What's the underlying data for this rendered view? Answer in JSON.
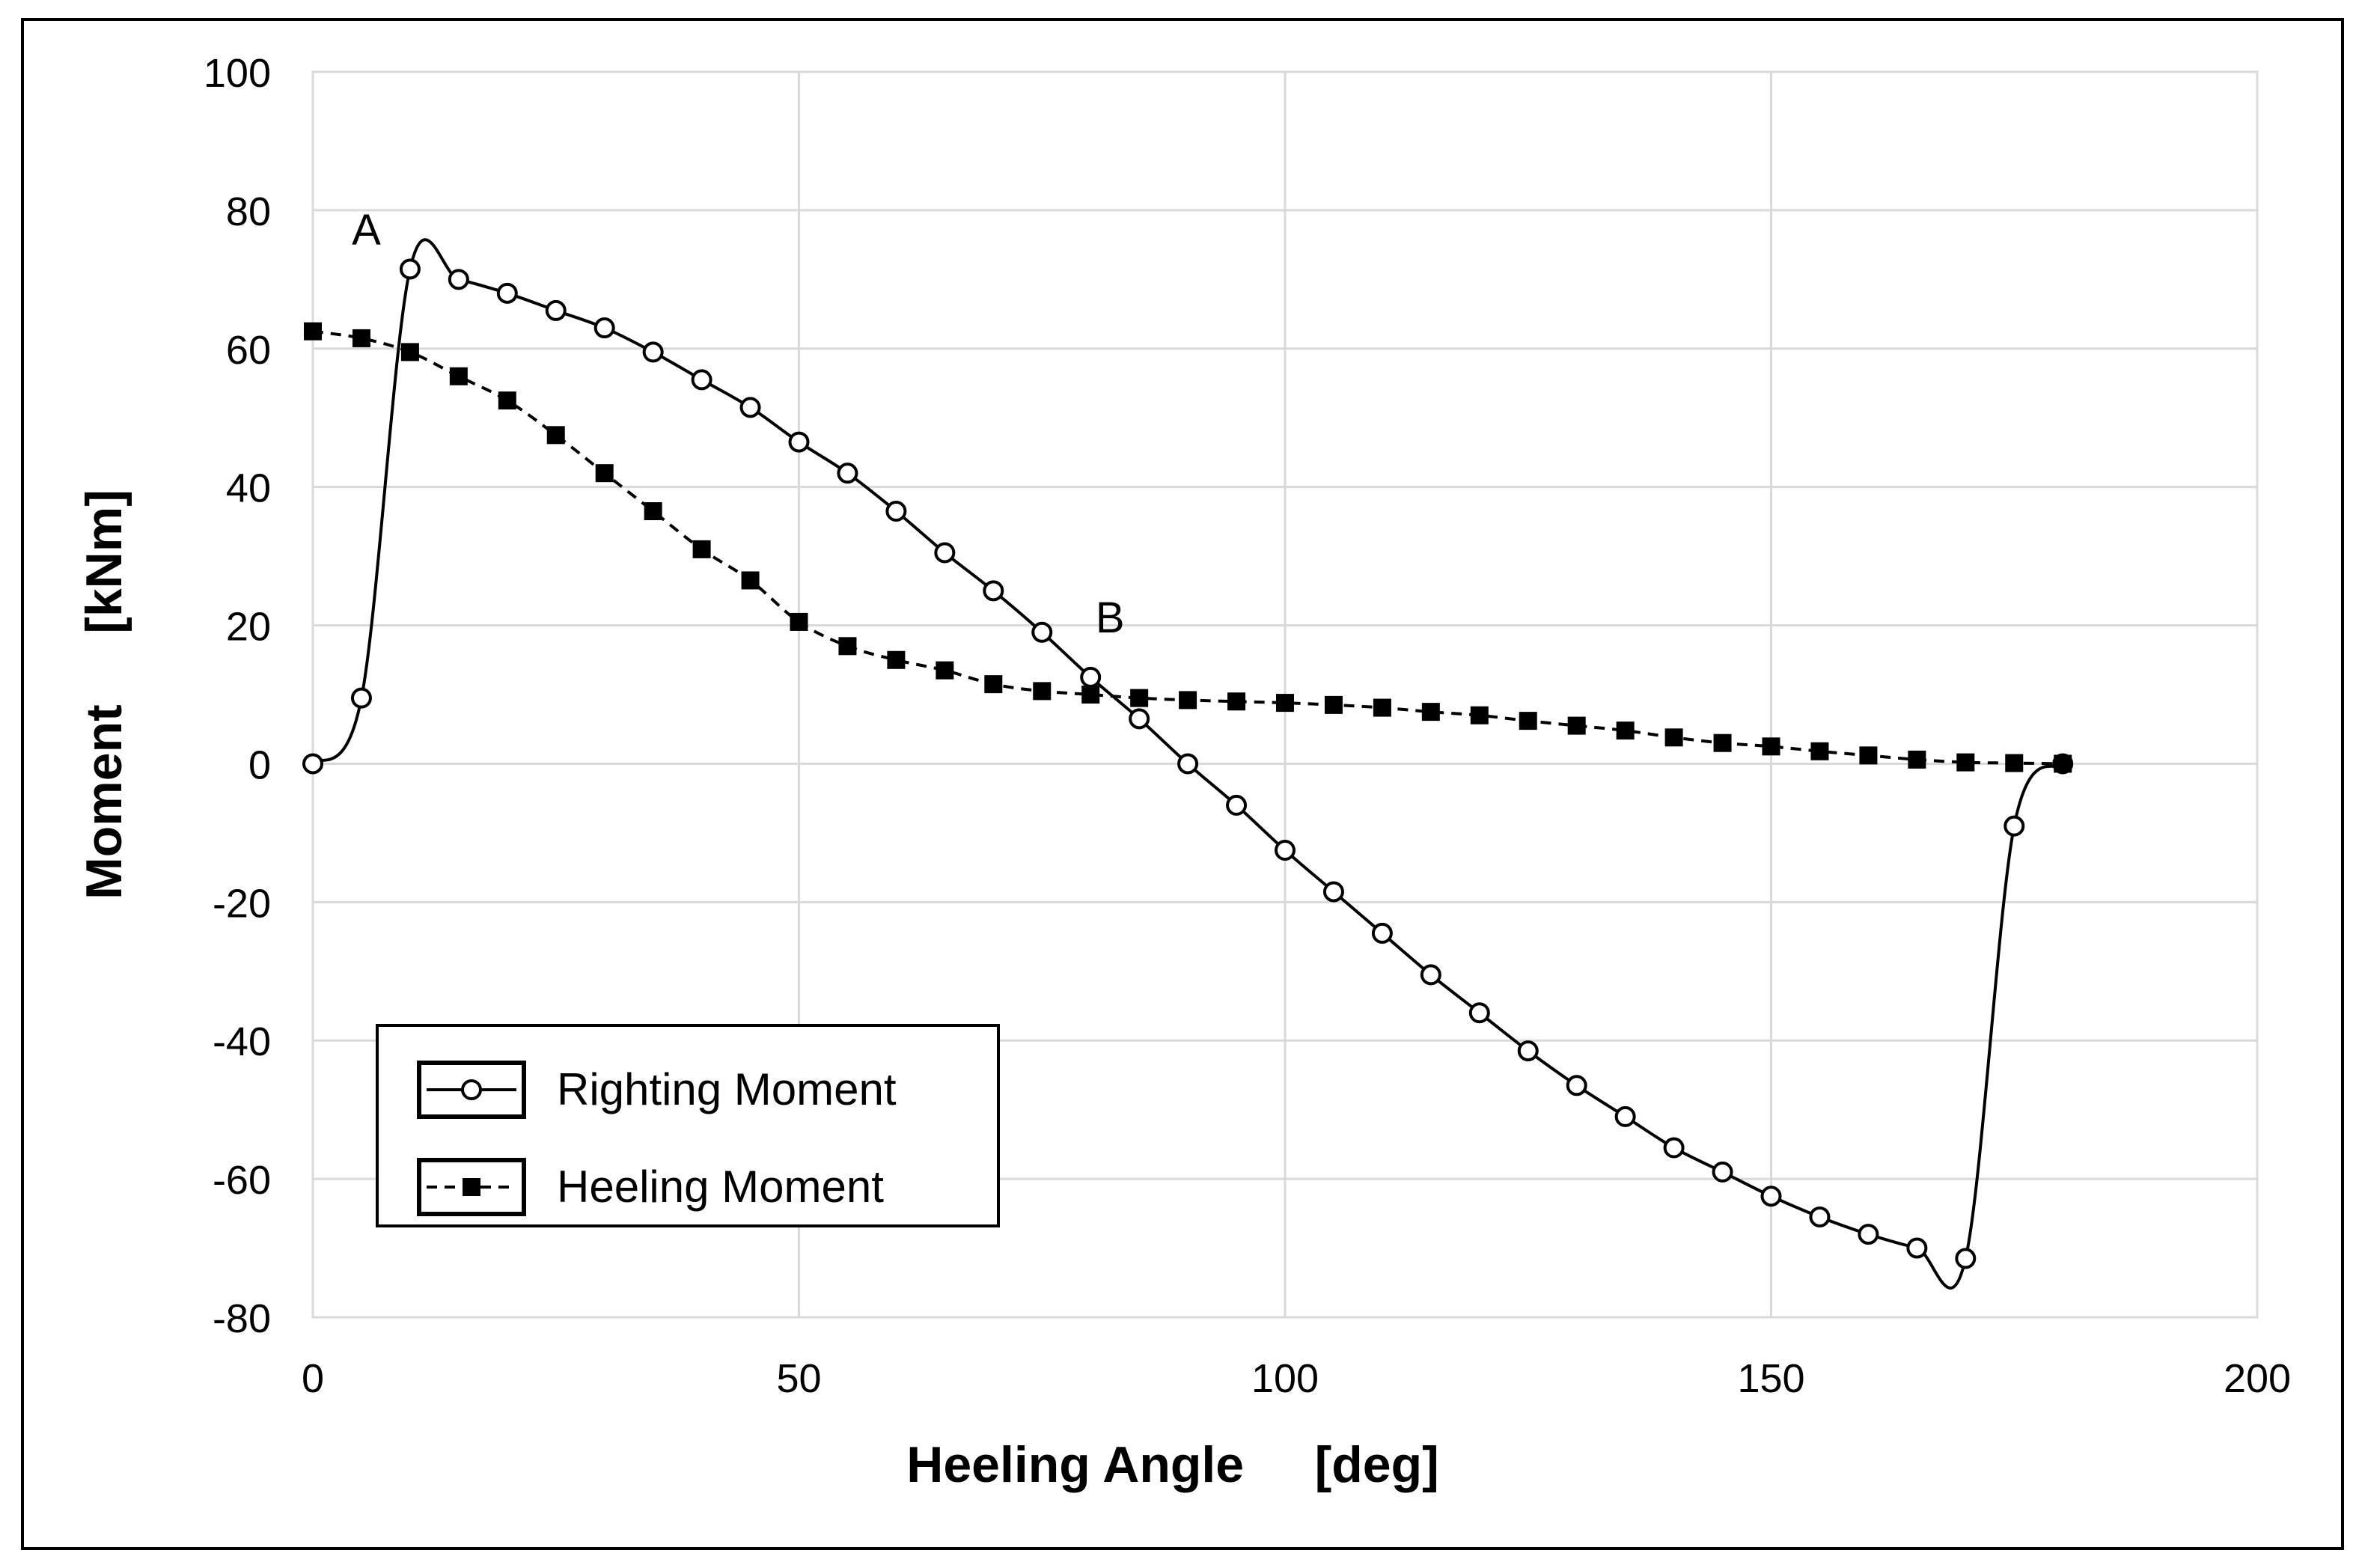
{
  "chart_data": {
    "type": "line",
    "title": "",
    "xlabel": "Heeling Angle     [deg]",
    "ylabel": "Moment     [kNm]",
    "xlim": [
      0,
      200
    ],
    "ylim": [
      -80,
      100
    ],
    "xticks": [
      0,
      50,
      100,
      150,
      200
    ],
    "yticks": [
      -80,
      -60,
      -40,
      -20,
      0,
      20,
      40,
      60,
      80,
      100
    ],
    "grid": true,
    "legend_position": "bottom-left",
    "annotations": [
      {
        "text": "A",
        "x": 5.5,
        "y": 75
      },
      {
        "text": "B",
        "x": 82,
        "y": 19
      }
    ],
    "series": [
      {
        "name": "Righting Moment",
        "marker": "open-circle",
        "line": "solid",
        "x": [
          0,
          5,
          10,
          15,
          20,
          25,
          30,
          35,
          40,
          45,
          50,
          55,
          60,
          65,
          70,
          75,
          80,
          85,
          90,
          95,
          100,
          105,
          110,
          115,
          120,
          125,
          130,
          135,
          140,
          145,
          150,
          155,
          160,
          165,
          170,
          175,
          180
        ],
        "y": [
          0,
          9.5,
          71.5,
          70,
          68,
          65.5,
          63,
          59.5,
          55.5,
          51.5,
          46.5,
          42,
          36.5,
          30.5,
          25,
          19,
          12.5,
          6.5,
          0,
          -6,
          -12.5,
          -18.5,
          -24.5,
          -30.5,
          -36,
          -41.5,
          -46.5,
          -51,
          -55.5,
          -59,
          -62.5,
          -65.5,
          -68,
          -70,
          -71.5,
          -9,
          0
        ]
      },
      {
        "name": "Heeling Moment",
        "marker": "filled-square",
        "line": "dashed",
        "x": [
          0,
          5,
          10,
          15,
          20,
          25,
          30,
          35,
          40,
          45,
          50,
          55,
          60,
          65,
          70,
          75,
          80,
          85,
          90,
          95,
          100,
          105,
          110,
          115,
          120,
          125,
          130,
          135,
          140,
          145,
          150,
          155,
          160,
          165,
          170,
          175,
          180
        ],
        "y": [
          62.5,
          61.5,
          59.5,
          56,
          52.5,
          47.5,
          42,
          36.5,
          31,
          26.5,
          20.5,
          17,
          15,
          13.5,
          11.5,
          10.5,
          10,
          9.5,
          9.2,
          9,
          8.8,
          8.5,
          8.1,
          7.5,
          7,
          6.2,
          5.5,
          4.8,
          3.8,
          3,
          2.5,
          1.8,
          1.2,
          0.6,
          0.2,
          0.1,
          0
        ]
      }
    ]
  }
}
